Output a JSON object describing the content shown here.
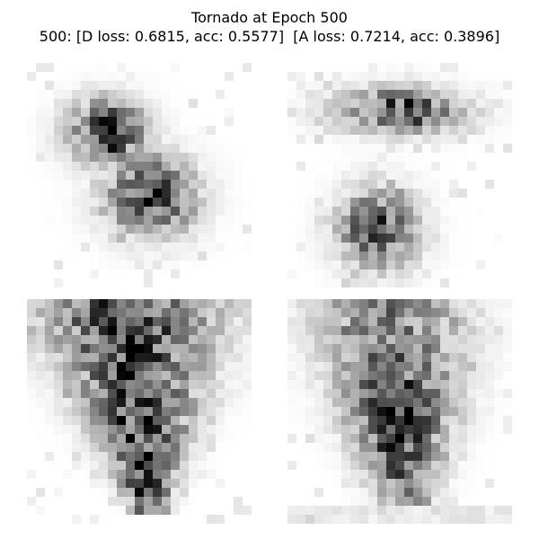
{
  "figure": {
    "title_line1": "Tornado at Epoch 500",
    "title_line2": "500: [D loss: 0.6815, acc: 0.5577]  [A loss: 0.7214, acc: 0.3896]"
  },
  "colors": {
    "background": "#ffffff",
    "ink": "#000000"
  },
  "samples": [
    {
      "seed": 11,
      "shape": "diamond"
    },
    {
      "seed": 23,
      "shape": "split"
    },
    {
      "seed": 37,
      "shape": "funnel"
    },
    {
      "seed": 51,
      "shape": "wedge"
    }
  ]
}
